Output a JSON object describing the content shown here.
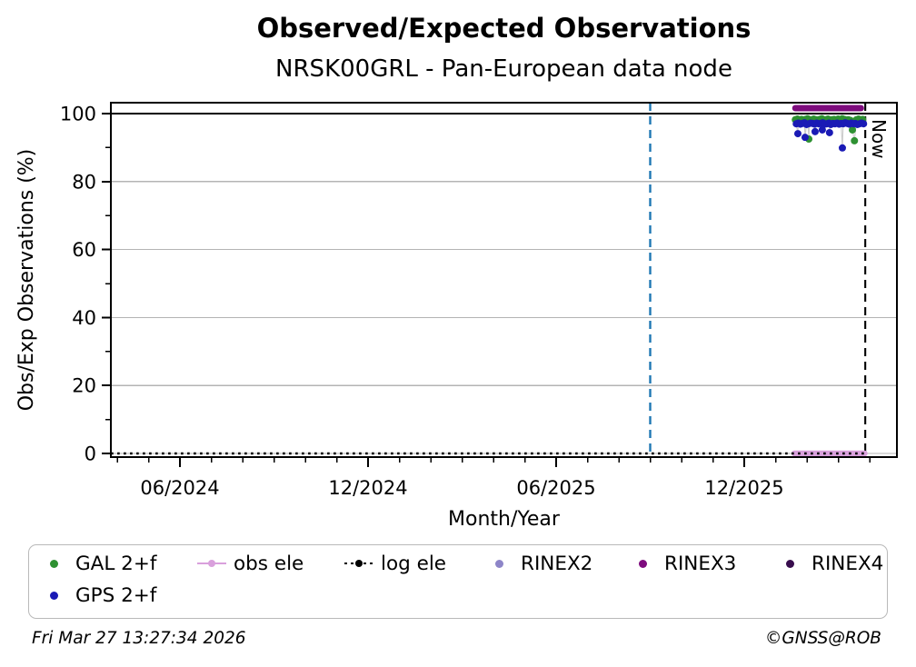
{
  "header": {
    "title": "Observed/Expected Observations",
    "subtitle": "NRSK00GRL - Pan-European data node"
  },
  "footer": {
    "timestamp": "Fri Mar 27 13:27:34 2026",
    "copyright": "©GNSS@ROB"
  },
  "legend": {
    "items": [
      {
        "label": "GAL 2+f",
        "marker": "dot",
        "color": "#2e9132"
      },
      {
        "label": "obs ele",
        "marker": "line-dot",
        "color": "#d9a0dc"
      },
      {
        "label": "log ele",
        "marker": "dotted-line-dot",
        "color": "#000000"
      },
      {
        "label": "RINEX2",
        "marker": "dot",
        "color": "#8d85c8"
      },
      {
        "label": "RINEX3",
        "marker": "dot",
        "color": "#7d0b7d"
      },
      {
        "label": "RINEX4",
        "marker": "dot",
        "color": "#380d4d"
      },
      {
        "label": "GPS 2+f",
        "marker": "dot",
        "color": "#1a1ab5"
      }
    ]
  },
  "chart_data": {
    "type": "scatter",
    "title": "Observed/Expected Observations",
    "subtitle": "NRSK00GRL - Pan-European data node",
    "xlabel": "Month/Year",
    "ylabel": "Obs/Exp Observations (%)",
    "x_unit": "months since 2024-01 (decimal)",
    "xlim": [
      2.8,
      27.87
    ],
    "ylim": [
      -1.1,
      103.2
    ],
    "grid": "horizontal-light-gray",
    "legend_position": "below-chart",
    "x_ticks": [
      {
        "v": 5,
        "label": "06/2024"
      },
      {
        "v": 11,
        "label": "12/2024"
      },
      {
        "v": 17,
        "label": "06/2025"
      },
      {
        "v": 23,
        "label": "12/2025"
      }
    ],
    "x_minor_ticks": {
      "from": 3,
      "to": 27,
      "step": 1
    },
    "y_ticks": [
      0,
      20,
      40,
      60,
      80,
      100
    ],
    "y_minor_ticks": [
      10,
      30,
      50,
      70,
      90
    ],
    "y_gridlines": [
      0,
      20,
      40,
      60,
      80
    ],
    "reference_lines": [
      {
        "name": "hundred-percent-line",
        "type": "hline",
        "y": 100,
        "color": "#000000",
        "style": "solid",
        "width": 2
      },
      {
        "name": "event-line",
        "type": "vline",
        "x": 20.0,
        "color": "#1f77b4",
        "style": "dashed",
        "width": 2.4,
        "date": "09/2025"
      },
      {
        "name": "now-line",
        "type": "vline",
        "x": 26.86,
        "color": "#000000",
        "style": "dashed",
        "width": 2.1,
        "label": "Now",
        "date": "Mar 27 2026"
      }
    ],
    "now_label": "Now",
    "series": [
      {
        "name": "obs ele",
        "kind": "line",
        "color": "#d9a0dc",
        "width": 6.5,
        "points": [
          [
            24.6,
            0
          ],
          [
            26.84,
            0
          ]
        ]
      },
      {
        "name": "log ele",
        "kind": "dotted-line",
        "color": "#000000",
        "width": 2.6,
        "points": [
          [
            2.8,
            0
          ],
          [
            26.86,
            0
          ]
        ]
      },
      {
        "name": "RINEX3",
        "kind": "line",
        "color": "#7d0b7d",
        "width": 7,
        "points": [
          [
            24.63,
            101.6
          ],
          [
            26.72,
            101.6
          ]
        ]
      },
      {
        "name": "RINEX2",
        "kind": "scatter",
        "color": "#8d85c8",
        "points": []
      },
      {
        "name": "RINEX4",
        "kind": "scatter",
        "color": "#380d4d",
        "points": []
      },
      {
        "name": "GAL 2+f",
        "kind": "scatter",
        "color": "#2e9132",
        "points": [
          [
            24.63,
            98.2
          ],
          [
            24.695,
            98.4
          ],
          [
            24.76,
            98.1
          ],
          [
            24.825,
            98.3
          ],
          [
            24.89,
            98.0
          ],
          [
            24.955,
            98.3
          ],
          [
            25.02,
            98.5
          ],
          [
            25.06,
            92.5
          ],
          [
            25.085,
            98.2
          ],
          [
            25.15,
            98.0
          ],
          [
            25.215,
            98.4
          ],
          [
            25.28,
            98.2
          ],
          [
            25.345,
            98.1
          ],
          [
            25.41,
            98.3
          ],
          [
            25.475,
            98.5
          ],
          [
            25.54,
            98.1
          ],
          [
            25.605,
            98.2
          ],
          [
            25.67,
            98.4
          ],
          [
            25.735,
            98.0
          ],
          [
            25.8,
            98.2
          ],
          [
            25.865,
            98.3
          ],
          [
            25.93,
            98.1
          ],
          [
            25.995,
            98.4
          ],
          [
            26.06,
            98.2
          ],
          [
            26.125,
            98.5
          ],
          [
            26.19,
            98.3
          ],
          [
            26.255,
            98.1
          ],
          [
            26.32,
            98.2
          ],
          [
            26.385,
            98.0
          ],
          [
            26.45,
            95.2
          ],
          [
            26.515,
            92.0
          ],
          [
            26.58,
            98.2
          ],
          [
            26.645,
            98.4
          ],
          [
            26.71,
            98.1
          ],
          [
            26.775,
            98.3
          ]
        ]
      },
      {
        "name": "GPS 2+f",
        "kind": "scatter",
        "color": "#1a1ab5",
        "points": [
          [
            24.66,
            97.0
          ],
          [
            24.71,
            94.1
          ],
          [
            24.725,
            97.2
          ],
          [
            24.79,
            96.9
          ],
          [
            24.855,
            97.1
          ],
          [
            24.92,
            97.3
          ],
          [
            24.94,
            93.0
          ],
          [
            24.985,
            96.8
          ],
          [
            25.05,
            97.0
          ],
          [
            25.115,
            97.2
          ],
          [
            25.18,
            97.1
          ],
          [
            25.245,
            96.9
          ],
          [
            25.26,
            94.7
          ],
          [
            25.31,
            97.2
          ],
          [
            25.375,
            97.0
          ],
          [
            25.44,
            97.1
          ],
          [
            25.49,
            95.2
          ],
          [
            25.505,
            97.3
          ],
          [
            25.57,
            96.9
          ],
          [
            25.635,
            97.0
          ],
          [
            25.7,
            97.2
          ],
          [
            25.72,
            94.4
          ],
          [
            25.765,
            96.8
          ],
          [
            25.83,
            97.1
          ],
          [
            25.895,
            97.0
          ],
          [
            25.96,
            97.2
          ],
          [
            26.025,
            96.9
          ],
          [
            26.09,
            97.1
          ],
          [
            26.13,
            89.9
          ],
          [
            26.155,
            97.0
          ],
          [
            26.22,
            97.3
          ],
          [
            26.285,
            97.1
          ],
          [
            26.35,
            96.9
          ],
          [
            26.415,
            97.2
          ],
          [
            26.48,
            97.0
          ],
          [
            26.545,
            97.1
          ],
          [
            26.61,
            96.8
          ],
          [
            26.675,
            97.0
          ],
          [
            26.74,
            97.2
          ],
          [
            26.805,
            97.0
          ]
        ]
      }
    ]
  }
}
